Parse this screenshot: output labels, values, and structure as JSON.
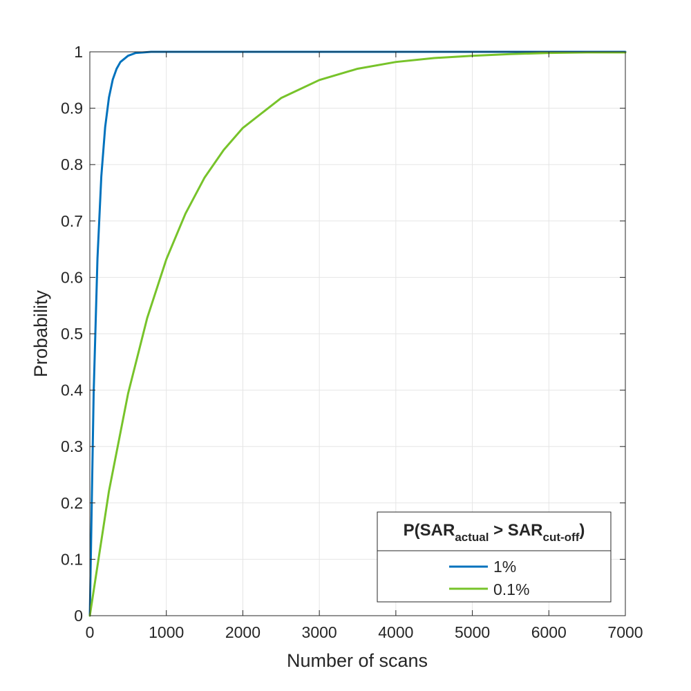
{
  "chart_data": {
    "type": "line",
    "title": "",
    "xlabel": "Number of scans",
    "ylabel": "Probability",
    "xlim": [
      0,
      7000
    ],
    "ylim": [
      0,
      1
    ],
    "xticks": [
      0,
      1000,
      2000,
      3000,
      4000,
      5000,
      6000,
      7000
    ],
    "yticks": [
      0,
      0.1,
      0.2,
      0.3,
      0.4,
      0.5,
      0.6,
      0.7,
      0.8,
      0.9,
      1
    ],
    "grid": true,
    "legend": {
      "title_main": "P(SAR",
      "title_sub1": "actual",
      "title_mid": " > SAR",
      "title_sub2": "cut-off",
      "title_end": ")",
      "placement": "bottom-right"
    },
    "series": [
      {
        "name": "1%",
        "color": "#0072BD",
        "x": [
          0,
          50,
          100,
          150,
          200,
          250,
          300,
          350,
          400,
          500,
          600,
          700,
          800,
          1000,
          2000,
          3000,
          4000,
          5000,
          6000,
          7000
        ],
        "y": [
          0,
          0.395,
          0.634,
          0.779,
          0.866,
          0.919,
          0.951,
          0.97,
          0.982,
          0.993,
          0.998,
          0.999,
          1.0,
          1.0,
          1.0,
          1.0,
          1.0,
          1.0,
          1.0,
          1.0
        ]
      },
      {
        "name": "0.1%",
        "color": "#77C32A",
        "x": [
          0,
          250,
          500,
          750,
          1000,
          1250,
          1500,
          1750,
          2000,
          2500,
          3000,
          3500,
          4000,
          4500,
          5000,
          5500,
          6000,
          6500,
          7000
        ],
        "y": [
          0,
          0.221,
          0.394,
          0.528,
          0.632,
          0.713,
          0.777,
          0.826,
          0.865,
          0.918,
          0.95,
          0.97,
          0.982,
          0.989,
          0.993,
          0.996,
          0.998,
          0.999,
          0.999
        ]
      }
    ]
  }
}
